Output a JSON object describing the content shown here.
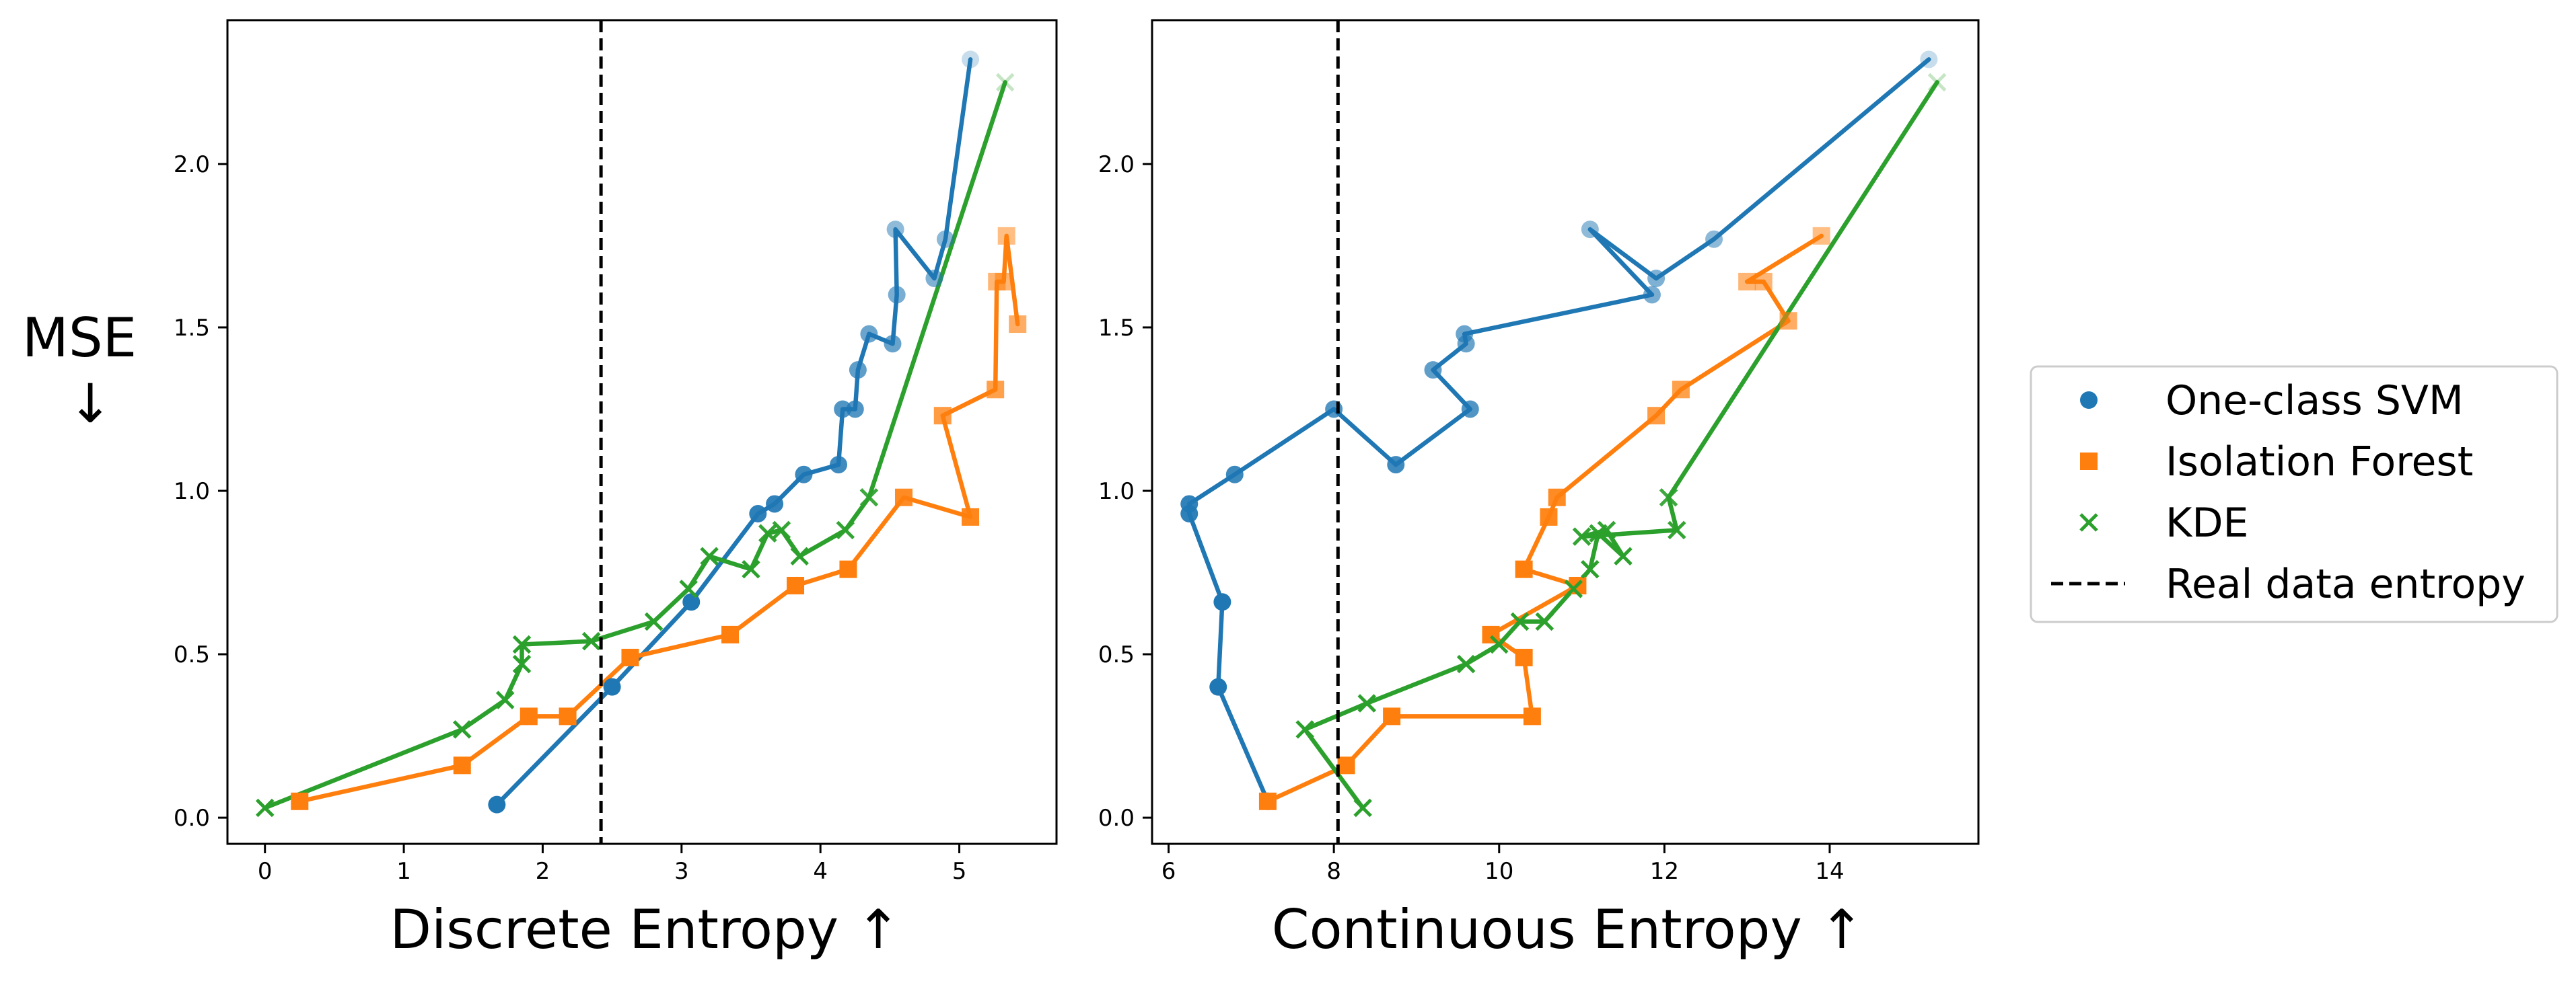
{
  "chart_data": [
    {
      "type": "line",
      "xlabel": "Discrete Entropy ↑",
      "ylabel": "MSE",
      "ylabel_arrow": "↓",
      "xlim": [
        -0.27,
        5.7
      ],
      "ylim": [
        -0.08,
        2.44
      ],
      "xticks": [
        0,
        1,
        2,
        3,
        4,
        5
      ],
      "yticks": [
        0.0,
        0.5,
        1.0,
        1.5,
        2.0
      ],
      "reference_line": {
        "name": "Real data entropy",
        "x": 2.42
      },
      "series": [
        {
          "name": "One-class SVM",
          "color": "#1f77b4",
          "marker": "circle",
          "x": [
            1.67,
            2.5,
            3.07,
            3.55,
            3.67,
            3.88,
            4.13,
            4.16,
            4.25,
            4.27,
            4.35,
            4.52,
            4.55,
            4.54,
            4.82,
            4.9,
            5.08
          ],
          "y": [
            0.04,
            0.4,
            0.66,
            0.93,
            0.96,
            1.05,
            1.08,
            1.25,
            1.25,
            1.37,
            1.48,
            1.45,
            1.6,
            1.8,
            1.65,
            1.77,
            2.32
          ]
        },
        {
          "name": "Isolation Forest",
          "color": "#ff7f0e",
          "marker": "square",
          "x": [
            0.25,
            1.42,
            1.9,
            2.18,
            2.63,
            3.35,
            3.82,
            4.2,
            4.6,
            5.08,
            4.88,
            5.26,
            5.27,
            5.32,
            5.34,
            5.42
          ],
          "y": [
            0.05,
            0.16,
            0.31,
            0.31,
            0.49,
            0.56,
            0.71,
            0.76,
            0.98,
            0.92,
            1.23,
            1.31,
            1.64,
            1.64,
            1.78,
            1.51
          ],
          "y_note": "last points faded"
        },
        {
          "name": "KDE",
          "color": "#2ca02c",
          "marker": "x",
          "x": [
            0.0,
            1.42,
            1.73,
            1.85,
            1.85,
            2.35,
            2.8,
            3.05,
            3.2,
            3.5,
            3.62,
            3.72,
            3.85,
            4.18,
            4.35,
            5.33
          ],
          "y": [
            0.03,
            0.27,
            0.36,
            0.47,
            0.53,
            0.54,
            0.6,
            0.7,
            0.8,
            0.76,
            0.87,
            0.88,
            0.8,
            0.88,
            0.98,
            2.25
          ]
        }
      ]
    },
    {
      "type": "line",
      "xlabel": "Continuous Entropy ↑",
      "xlim": [
        5.8,
        15.8
      ],
      "ylim": [
        -0.08,
        2.44
      ],
      "xticks": [
        6,
        8,
        10,
        12,
        14
      ],
      "yticks": [
        0.0,
        0.5,
        1.0,
        1.5,
        2.0
      ],
      "reference_line": {
        "name": "Real data entropy",
        "x": 8.05
      },
      "series": [
        {
          "name": "One-class SVM",
          "color": "#1f77b4",
          "marker": "circle",
          "x": [
            7.2,
            6.6,
            6.65,
            6.25,
            6.25,
            6.8,
            8.0,
            8.75,
            9.65,
            9.2,
            9.6,
            9.58,
            11.85,
            11.1,
            11.9,
            12.6,
            15.2
          ],
          "y": [
            0.05,
            0.4,
            0.66,
            0.93,
            0.96,
            1.05,
            1.25,
            1.08,
            1.25,
            1.37,
            1.45,
            1.48,
            1.6,
            1.8,
            1.65,
            1.77,
            2.32
          ]
        },
        {
          "name": "Isolation Forest",
          "color": "#ff7f0e",
          "marker": "square",
          "x": [
            7.2,
            8.15,
            8.7,
            10.4,
            10.3,
            9.9,
            10.95,
            10.3,
            10.6,
            10.7,
            11.9,
            12.2,
            13.5,
            13.2,
            13.0,
            13.9
          ],
          "y": [
            0.05,
            0.16,
            0.31,
            0.31,
            0.49,
            0.56,
            0.71,
            0.76,
            0.92,
            0.98,
            1.23,
            1.31,
            1.52,
            1.64,
            1.64,
            1.78
          ]
        },
        {
          "name": "KDE",
          "color": "#2ca02c",
          "marker": "x",
          "x": [
            8.35,
            7.65,
            8.4,
            9.6,
            10.0,
            10.25,
            10.55,
            10.9,
            11.1,
            11.2,
            11.5,
            11.3,
            11.0,
            12.15,
            12.05,
            15.3
          ],
          "y": [
            0.03,
            0.27,
            0.35,
            0.47,
            0.53,
            0.6,
            0.6,
            0.7,
            0.76,
            0.87,
            0.8,
            0.88,
            0.86,
            0.88,
            0.98,
            2.25
          ]
        }
      ]
    }
  ],
  "legend": {
    "placement": "right",
    "entries": [
      {
        "label": "One-class SVM",
        "marker": "circle",
        "color": "#1f77b4"
      },
      {
        "label": "Isolation Forest",
        "marker": "square",
        "color": "#ff7f0e"
      },
      {
        "label": "KDE",
        "marker": "x",
        "color": "#2ca02c"
      },
      {
        "label": "Real data entropy",
        "marker": "dashed-line",
        "color": "#000000"
      }
    ]
  }
}
